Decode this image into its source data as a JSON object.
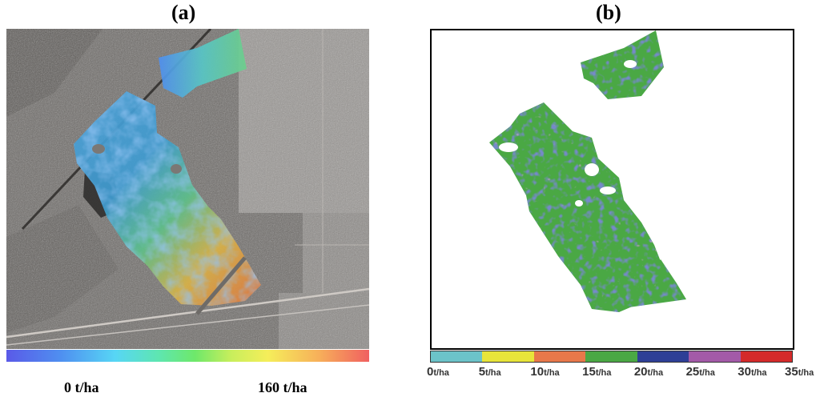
{
  "panels": {
    "a": {
      "label": "(a)",
      "gradient": {
        "min_label": "0 t/ha",
        "max_label": "160 t/ha",
        "colors": [
          "#5a5ae8",
          "#4f8ff0",
          "#57d6f5",
          "#5ee6b0",
          "#6ee86a",
          "#c8ee5c",
          "#f5ee5a",
          "#f7b05a",
          "#f06060"
        ]
      }
    },
    "b": {
      "label": "(b)",
      "legend": {
        "segments": [
          "#6cc3c9",
          "#e8e53a",
          "#e8784a",
          "#4aa844",
          "#2e3f96",
          "#a35aa8",
          "#d42a2a"
        ],
        "ticks": [
          {
            "num": "0",
            "unit": "t/ha"
          },
          {
            "num": "5",
            "unit": "t/ha"
          },
          {
            "num": "10",
            "unit": "t/ha"
          },
          {
            "num": "15",
            "unit": "t/ha"
          },
          {
            "num": "20",
            "unit": "t/ha"
          },
          {
            "num": "25",
            "unit": "t/ha"
          },
          {
            "num": "30",
            "unit": "t/ha"
          },
          {
            "num": "35",
            "unit": "t/ha"
          }
        ]
      }
    }
  }
}
